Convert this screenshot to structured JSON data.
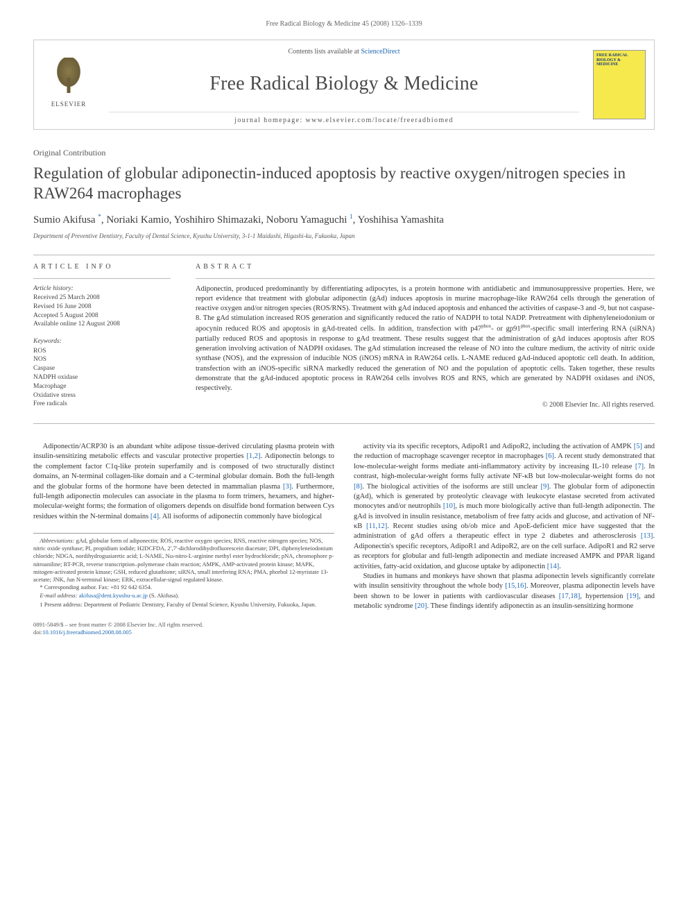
{
  "top_citation": "Free Radical Biology & Medicine 45 (2008) 1326–1339",
  "header": {
    "contents_prefix": "Contents lists available at ",
    "contents_link": "ScienceDirect",
    "journal_title": "Free Radical Biology & Medicine",
    "homepage_prefix": "journal homepage: ",
    "homepage_url": "www.elsevier.com/locate/freeradbiomed",
    "publisher": "ELSEVIER",
    "cover_text": "FREE RADICAL BIOLOGY & MEDICINE"
  },
  "article": {
    "type": "Original Contribution",
    "title": "Regulation of globular adiponectin-induced apoptosis by reactive oxygen/nitrogen species in RAW264 macrophages",
    "authors_html": "Sumio Akifusa <a class='sup'>*</a>, Noriaki Kamio, Yoshihiro Shimazaki, Noboru Yamaguchi <span class='sup'>1</span>, Yoshihisa Yamashita",
    "affiliation": "Department of Preventive Dentistry, Faculty of Dental Science, Kyushu University, 3-1-1 Maidashi, Higashi-ku, Fukuoka, Japan"
  },
  "info": {
    "section_label": "article info",
    "history_head": "Article history:",
    "history": [
      "Received 25 March 2008",
      "Revised 16 June 2008",
      "Accepted 5 August 2008",
      "Available online 12 August 2008"
    ],
    "keywords_head": "Keywords:",
    "keywords": [
      "ROS",
      "NOS",
      "Caspase",
      "NADPH oxidase",
      "Macrophage",
      "Oxidative stress",
      "Free radicals"
    ]
  },
  "abstract": {
    "section_label": "abstract",
    "text": "Adiponectin, produced predominantly by differentiating adipocytes, is a protein hormone with antidiabetic and immunosuppressive properties. Here, we report evidence that treatment with globular adiponectin (gAd) induces apoptosis in murine macrophage-like RAW264 cells through the generation of reactive oxygen and/or nitrogen species (ROS/RNS). Treatment with gAd induced apoptosis and enhanced the activities of caspase-3 and -9, but not caspase-8. The gAd stimulation increased ROS generation and significantly reduced the ratio of NADPH to total NADP. Pretreatment with diphenyleneiodonium or apocynin reduced ROS and apoptosis in gAd-treated cells. In addition, transfection with p47phox- or gp91phox-specific small interfering RNA (siRNA) partially reduced ROS and apoptosis in response to gAd treatment. These results suggest that the administration of gAd induces apoptosis after ROS generation involving activation of NADPH oxidases. The gAd stimulation increased the release of NO into the culture medium, the activity of nitric oxide synthase (NOS), and the expression of inducible NOS (iNOS) mRNA in RAW264 cells. L-NAME reduced gAd-induced apoptotic cell death. In addition, transfection with an iNOS-specific siRNA markedly reduced the generation of NO and the population of apoptotic cells. Taken together, these results demonstrate that the gAd-induced apoptotic process in RAW264 cells involves ROS and RNS, which are generated by NADPH oxidases and iNOS, respectively.",
    "copyright": "© 2008 Elsevier Inc. All rights reserved."
  },
  "body": {
    "left_p1": "Adiponectin/ACRP30 is an abundant white adipose tissue-derived circulating plasma protein with insulin-sensitizing metabolic effects and vascular protective properties [1,2]. Adiponectin belongs to the complement factor C1q-like protein superfamily and is composed of two structurally distinct domains, an N-terminal collagen-like domain and a C-terminal globular domain. Both the full-length and the globular forms of the hormone have been detected in mammalian plasma [3]. Furthermore, full-length adiponectin molecules can associate in the plasma to form trimers, hexamers, and higher-molecular-weight forms; the formation of oligomers depends on disulfide bond formation between Cys residues within the N-terminal domains [4]. All isoforms of adiponectin commonly have biological",
    "right_p1": "activity via its specific receptors, AdipoR1 and AdipoR2, including the activation of AMPK [5] and the reduction of macrophage scavenger receptor in macrophages [6]. A recent study demonstrated that low-molecular-weight forms mediate anti-inflammatory activity by increasing IL-10 release [7]. In contrast, high-molecular-weight forms fully activate NF-κB but low-molecular-weight forms do not [8]. The biological activities of the isoforms are still unclear [9]. The globular form of adiponectin (gAd), which is generated by proteolytic cleavage with leukocyte elastase secreted from activated monocytes and/or neutrophils [10], is much more biologically active than full-length adiponectin. The gAd is involved in insulin resistance, metabolism of free fatty acids and glucose, and activation of NF-κB [11,12]. Recent studies using ob/ob mice and ApoE-deficient mice have suggested that the administration of gAd offers a therapeutic effect in type 2 diabetes and atherosclerosis [13]. Adiponectin's specific receptors, AdipoR1 and AdipoR2, are on the cell surface. AdipoR1 and R2 serve as receptors for globular and full-length adiponectin and mediate increased AMPK and PPAR ligand activities, fatty-acid oxidation, and glucose uptake by adiponectin [14].",
    "right_p2": "Studies in humans and monkeys have shown that plasma adiponectin levels significantly correlate with insulin sensitivity throughout the whole body [15,16]. Moreover, plasma adiponectin levels have been shown to be lower in patients with cardiovascular diseases [17,18], hypertension [19], and metabolic syndrome [20]. These findings identify adiponectin as an insulin-sensitizing hormone"
  },
  "footnotes": {
    "abbrev_label": "Abbreviations:",
    "abbrev": " gAd, globular form of adiponectin; ROS, reactive oxygen species; RNS, reactive nitrogen species; NOS, nitric oxide synthase; PI, propidium iodide; H2DCFDA, 2′,7′-dichlorodihydrofluorescein diacetate; DPI, diphenyleneiodonium chloride; NDGA, nordihydroguaiaretic acid; L-NAME, Nω-nitro-L-arginine methyl ester hydrochloride; pNA, chromophore p-nitroaniline; RT-PCR, reverse transcription–polymerase chain reaction; AMPK, AMP-activated protein kinase; MAPK, mitogen-activated protein kinase; GSH, reduced glutathione; siRNA, small interfering RNA; PMA, phorbol 12-myristate 13-acetate; JNK, Jun N-terminal kinase; ERK, extracellular-signal regulated kinase.",
    "corresponding": "* Corresponding author. Fax: +81 92 642 6354.",
    "email_label": "E-mail address: ",
    "email": "akifusa@dent.kyushu-u.ac.jp",
    "email_suffix": " (S. Akifusa).",
    "present": "1 Present address: Department of Pediatric Dentistry, Faculty of Dental Science, Kyushu University, Fukuoka, Japan."
  },
  "footer": {
    "issn_line": "0891-5849/$ – see front matter © 2008 Elsevier Inc. All rights reserved.",
    "doi_prefix": "doi:",
    "doi": "10.1016/j.freeradbiomed.2008.08.005"
  },
  "colors": {
    "link": "#1b66b1",
    "text": "#333333",
    "muted": "#555555",
    "rule": "#b8b8b8",
    "cover_bg": "#f5e94e",
    "cover_text": "#1a3a7a"
  },
  "refs_in_text": [
    "[1,2]",
    "[3]",
    "[4]",
    "[5]",
    "[6]",
    "[7]",
    "[8]",
    "[9]",
    "[10]",
    "[11,12]",
    "[13]",
    "[14]",
    "[15,16]",
    "[17,18]",
    "[19]",
    "[20]"
  ]
}
